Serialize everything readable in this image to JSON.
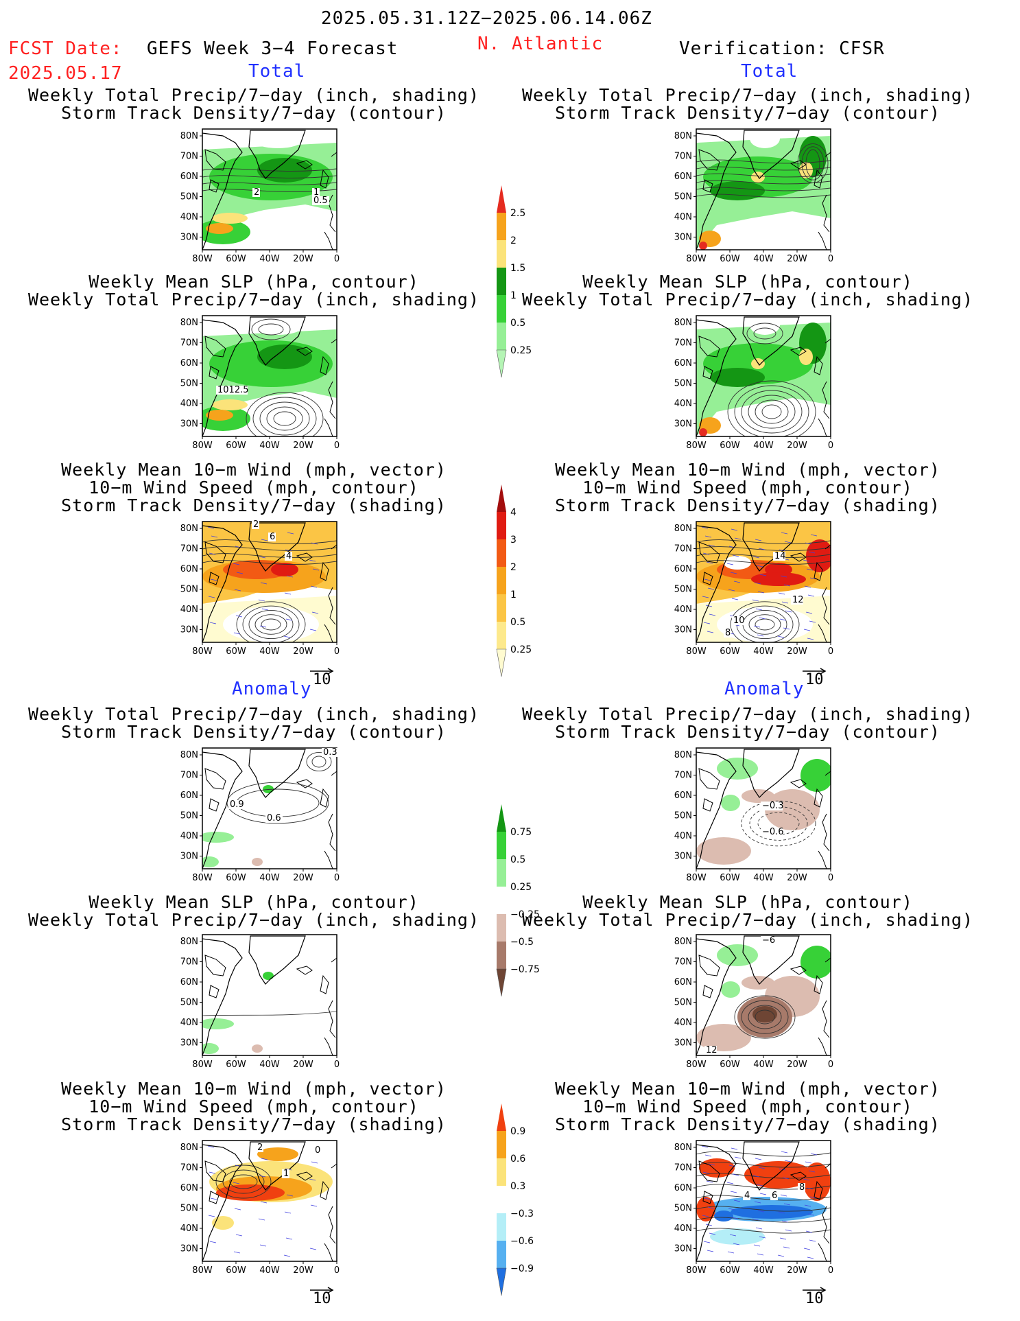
{
  "header": {
    "date_range": "2025.05.31.12Z−2025.06.14.06Z",
    "fcst_label": "FCST Date:",
    "fcst_date": "2025.05.17",
    "left_title": "GEFS Week 3−4 Forecast",
    "region": "N. Atlantic",
    "right_title": "Verification: CFSR"
  },
  "sections": {
    "total": "Total",
    "anomaly": "Anomaly"
  },
  "map": {
    "lat_ticks": [
      "80N",
      "70N",
      "60N",
      "50N",
      "40N",
      "30N"
    ],
    "lon_ticks": [
      "80W",
      "60W",
      "40W",
      "20W",
      "0"
    ],
    "vector_ref": "10"
  },
  "panel_titles": {
    "precip_track": [
      "Weekly Total Precip/7−day (inch, shading)",
      "Storm Track Density/7−day (contour)"
    ],
    "slp_precip": [
      "Weekly Mean SLP (hPa, contour)",
      "Weekly Total Precip/7−day (inch, shading)"
    ],
    "wind_track": [
      "Weekly Mean 10−m Wind (mph, vector)",
      "10−m Wind Speed (mph, contour)",
      "Storm Track Density/7−day (shading)"
    ]
  },
  "contour_labels": {
    "fc_total_precip": [
      "2",
      "1",
      "0.5"
    ],
    "fc_total_slp": [
      "1012.5"
    ],
    "fc_total_wind": [
      "2",
      "6",
      "4"
    ],
    "ver_total_wind": [
      "14",
      "12",
      "10",
      "8"
    ],
    "fc_anom_precip": [
      "0.3",
      "0.9",
      "0.6"
    ],
    "ver_anom_precip": [
      "−0.3",
      "−0.6"
    ],
    "ver_anom_slp": [
      "−6",
      "12"
    ],
    "fc_anom_wind": [
      "0",
      "2",
      "1"
    ],
    "ver_anom_wind": [
      "4",
      "6",
      "8"
    ]
  },
  "colorbars": {
    "precip_total": {
      "labels": [
        "2.5",
        "2",
        "1.5",
        "1",
        "0.5",
        "0.25"
      ],
      "colors": [
        "#e52b20",
        "#f6a31c",
        "#fbe37a",
        "#149614",
        "#37d137",
        "#96ef96",
        "#b4f4b4"
      ]
    },
    "track_total": {
      "labels": [
        "4",
        "3",
        "2",
        "1",
        "0.5",
        "0.25"
      ],
      "colors": [
        "#a30d0d",
        "#e01b12",
        "#f25a14",
        "#f6a31c",
        "#fbc545",
        "#fde98c",
        "#fffbd0"
      ]
    },
    "precip_anom": {
      "labels": [
        "0.75",
        "0.5",
        "0.25",
        "−0.25",
        "−0.5",
        "−0.75"
      ],
      "colors": [
        "#149614",
        "#37d137",
        "#96ef96",
        "#ffffff",
        "#dcbcb0",
        "#a77a6a",
        "#6e4534"
      ]
    },
    "track_anom": {
      "labels": [
        "0.9",
        "0.6",
        "0.3",
        "−0.3",
        "−0.6",
        "−0.9"
      ],
      "colors": [
        "#f04010",
        "#f6a31c",
        "#fbe37a",
        "#ffffff",
        "#b4eef7",
        "#56b0f0",
        "#1f6fe0"
      ]
    }
  }
}
